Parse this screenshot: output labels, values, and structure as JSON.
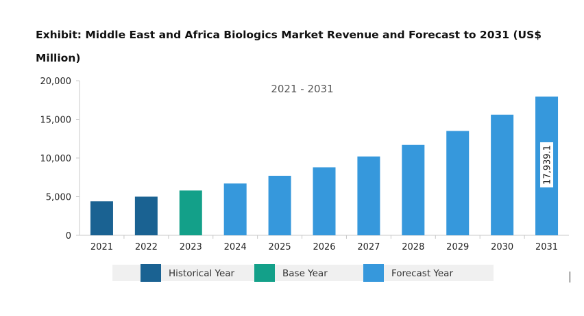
{
  "chart_data": {
    "type": "bar",
    "title": "Exhibit: Middle East and Africa Biologics Market Revenue and Forecast to 2031 (US$ Million)",
    "subtitle": "2021 - 2031",
    "categories": [
      "2021",
      "2022",
      "2023",
      "2024",
      "2025",
      "2026",
      "2027",
      "2028",
      "2029",
      "2030",
      "2031"
    ],
    "values": [
      4400,
      5000,
      5800,
      6700,
      7700,
      8800,
      10200,
      11700,
      13500,
      15600,
      17939.1
    ],
    "bar_types": [
      "historical",
      "historical",
      "base",
      "forecast",
      "forecast",
      "forecast",
      "forecast",
      "forecast",
      "forecast",
      "forecast",
      "forecast"
    ],
    "yticks": [
      "0",
      "5,000",
      "10,000",
      "15,000",
      "20,000"
    ],
    "ylim": [
      0,
      20000
    ],
    "grid": false,
    "data_labels": [
      {
        "category": "2031",
        "text": "17,939.1"
      }
    ],
    "legend": {
      "placement": "bottom",
      "items": [
        {
          "key": "historical",
          "label": "Historical Year",
          "color": "#1a6292"
        },
        {
          "key": "base",
          "label": "Base Year",
          "color": "#13a089"
        },
        {
          "key": "forecast",
          "label": "Forecast Year",
          "color": "#3698dc"
        }
      ]
    }
  }
}
